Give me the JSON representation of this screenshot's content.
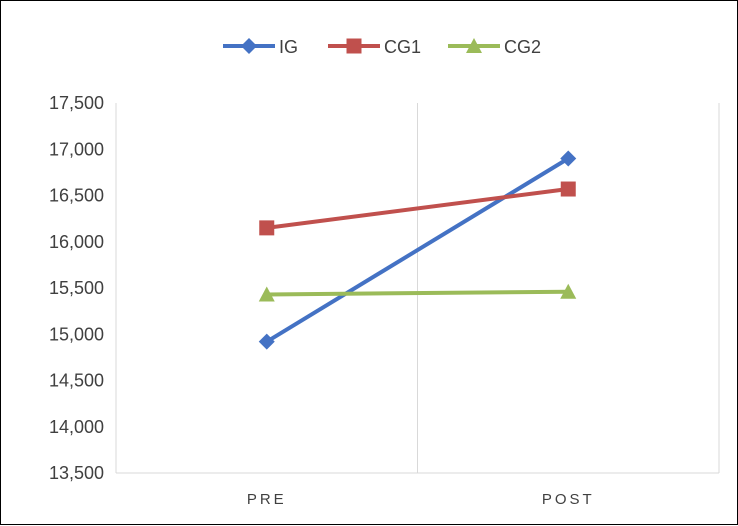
{
  "chart_data": {
    "type": "line",
    "title": "",
    "xlabel": "",
    "ylabel": "",
    "categories": [
      "PRE",
      "POST"
    ],
    "y_ticks": [
      "13,500",
      "14,000",
      "14,500",
      "15,000",
      "15,500",
      "16,000",
      "16,500",
      "17,000",
      "17,500"
    ],
    "ylim": [
      13.5,
      17.5
    ],
    "grid": "vertical category lines",
    "legend": "top-center",
    "series": [
      {
        "name": "IG",
        "values": [
          14.92,
          16.9
        ],
        "color": "#4472C4",
        "marker": "diamond"
      },
      {
        "name": "CG1",
        "values": [
          16.15,
          16.57
        ],
        "color": "#C0504D",
        "marker": "square"
      },
      {
        "name": "CG2",
        "values": [
          15.43,
          15.46
        ],
        "color": "#9BBB59",
        "marker": "triangle"
      }
    ]
  }
}
